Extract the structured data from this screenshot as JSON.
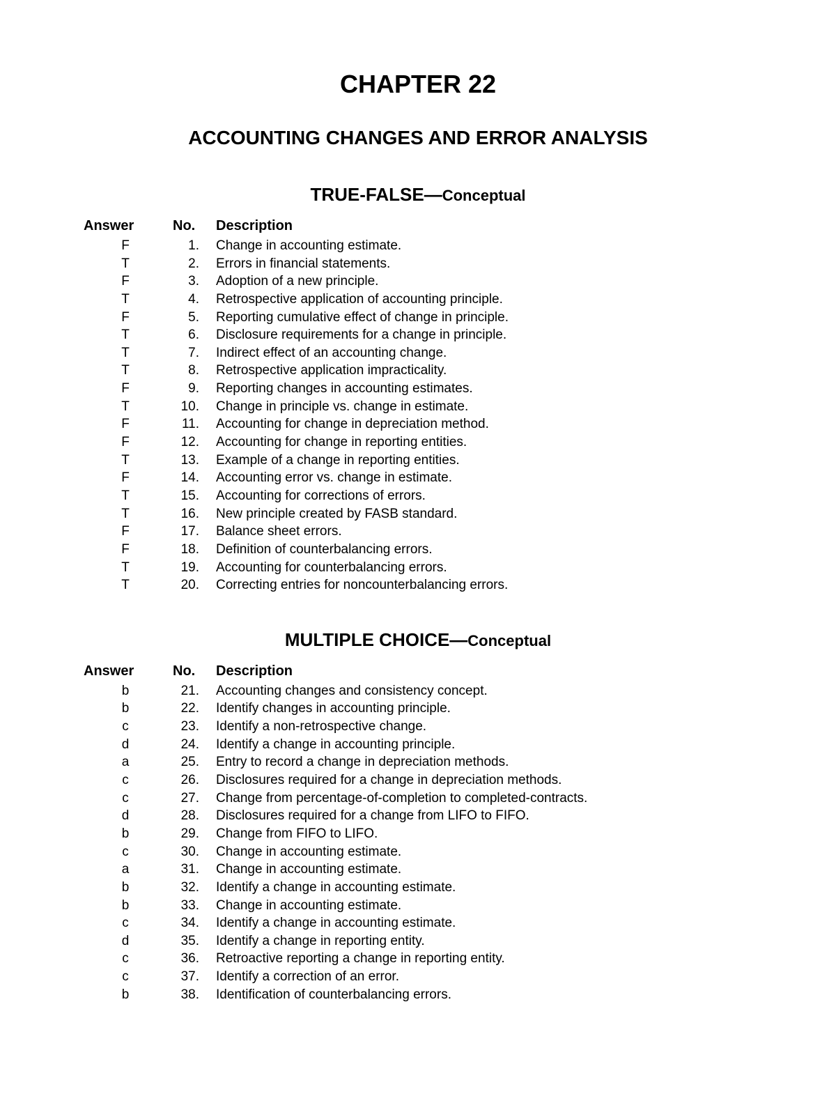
{
  "chapter": {
    "title": "CHAPTER 22",
    "subtitle": "ACCOUNTING CHANGES AND ERROR ANALYSIS"
  },
  "headers": {
    "answer": "Answer",
    "no": "No.",
    "description": "Description"
  },
  "sections": [
    {
      "heading_main": "TRUE-FALSE—",
      "heading_sub": "Conceptual",
      "rows": [
        {
          "answer": "F",
          "no": "1.",
          "desc": "Change in accounting estimate."
        },
        {
          "answer": "T",
          "no": "2.",
          "desc": "Errors in financial statements."
        },
        {
          "answer": "F",
          "no": "3.",
          "desc": "Adoption of a new principle."
        },
        {
          "answer": "T",
          "no": "4.",
          "desc": "Retrospective application of accounting principle."
        },
        {
          "answer": "F",
          "no": "5.",
          "desc": "Reporting cumulative effect of change in principle."
        },
        {
          "answer": "T",
          "no": "6.",
          "desc": "Disclosure requirements for a change in principle."
        },
        {
          "answer": "T",
          "no": "7.",
          "desc": "Indirect effect of an accounting change."
        },
        {
          "answer": "T",
          "no": "8.",
          "desc": "Retrospective application impracticality."
        },
        {
          "answer": "F",
          "no": "9.",
          "desc": "Reporting changes in accounting estimates."
        },
        {
          "answer": "T",
          "no": "10.",
          "desc": "Change in principle vs. change in estimate."
        },
        {
          "answer": "F",
          "no": "11.",
          "desc": "Accounting for change in depreciation method."
        },
        {
          "answer": "F",
          "no": "12.",
          "desc": "Accounting for change in reporting entities."
        },
        {
          "answer": "T",
          "no": "13.",
          "desc": "Example of a change in reporting entities."
        },
        {
          "answer": "F",
          "no": "14.",
          "desc": "Accounting error vs. change in estimate."
        },
        {
          "answer": "T",
          "no": "15.",
          "desc": "Accounting for corrections of errors."
        },
        {
          "answer": "T",
          "no": "16.",
          "desc": "New principle created by FASB standard."
        },
        {
          "answer": "F",
          "no": "17.",
          "desc": "Balance sheet errors."
        },
        {
          "answer": "F",
          "no": "18.",
          "desc": "Definition of counterbalancing errors."
        },
        {
          "answer": "T",
          "no": "19.",
          "desc": "Accounting for counterbalancing errors."
        },
        {
          "answer": "T",
          "no": "20.",
          "desc": "Correcting entries for noncounterbalancing errors."
        }
      ]
    },
    {
      "heading_main": "MULTIPLE CHOICE—",
      "heading_sub": "Conceptual",
      "rows": [
        {
          "answer": "b",
          "no": "21.",
          "desc": "Accounting changes and consistency concept."
        },
        {
          "answer": "b",
          "no": "22.",
          "desc": "Identify changes in accounting principle."
        },
        {
          "answer": "c",
          "no": "23.",
          "desc": "Identify a non-retrospective change."
        },
        {
          "answer": "d",
          "no": "24.",
          "desc": "Identify a change in accounting principle."
        },
        {
          "answer": "a",
          "no": "25.",
          "desc": "Entry to record a change in depreciation methods."
        },
        {
          "answer": "c",
          "no": "26.",
          "desc": "Disclosures required for a change in depreciation methods."
        },
        {
          "answer": "c",
          "no": "27.",
          "desc": "Change from percentage-of-completion to completed-contracts."
        },
        {
          "answer": "d",
          "no": "28.",
          "desc": "Disclosures required for a change from LIFO to FIFO."
        },
        {
          "answer": "b",
          "no": "29.",
          "desc": "Change from FIFO to LIFO."
        },
        {
          "answer": "c",
          "no": "30.",
          "desc": "Change in accounting estimate."
        },
        {
          "answer": "a",
          "no": "31.",
          "desc": "Change in accounting estimate."
        },
        {
          "answer": "b",
          "no": "32.",
          "desc": "Identify a change in accounting estimate."
        },
        {
          "answer": "b",
          "no": "33.",
          "desc": "Change in accounting estimate."
        },
        {
          "answer": "c",
          "no": "34.",
          "desc": "Identify a change in accounting estimate."
        },
        {
          "answer": "d",
          "no": "35.",
          "desc": "Identify a change in reporting entity."
        },
        {
          "answer": "c",
          "no": "36.",
          "desc": "Retroactive reporting a change in reporting entity."
        },
        {
          "answer": "c",
          "no": "37.",
          "desc": "Identify a correction of an error."
        },
        {
          "answer": "b",
          "no": "38.",
          "desc": "Identification of counterbalancing errors."
        }
      ]
    }
  ],
  "style": {
    "background_color": "#ffffff",
    "text_color": "#000000",
    "font_family": "Arial, Helvetica, sans-serif",
    "title_fontsize": 36,
    "subtitle_fontsize": 28,
    "section_heading_fontsize": 26,
    "section_heading_sub_fontsize": 22,
    "header_row_fontsize": 20,
    "body_row_fontsize": 19
  }
}
